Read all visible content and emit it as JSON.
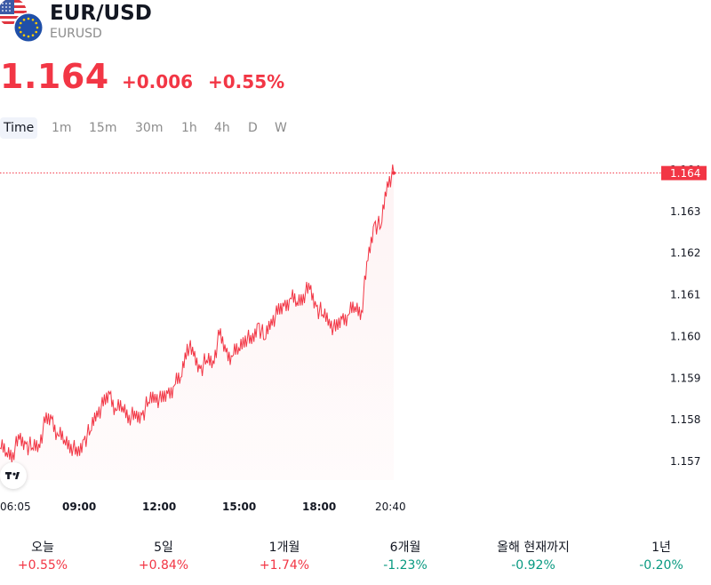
{
  "header": {
    "symbol": "EUR/USD",
    "ticker": "EURUSD",
    "flag_icons": [
      "us-flag-icon",
      "eu-flag-icon"
    ]
  },
  "quote": {
    "price": "1.164",
    "change": "+0.006",
    "change_percent": "+0.55%",
    "color": "#f23645"
  },
  "tabs": [
    {
      "label": "Time",
      "active": true
    },
    {
      "label": "1m"
    },
    {
      "label": "15m"
    },
    {
      "label": "30m"
    },
    {
      "label": "1h"
    },
    {
      "label": "4h"
    },
    {
      "label": "D"
    },
    {
      "label": "W"
    }
  ],
  "chart_data": {
    "type": "line",
    "y_ticks": [
      "1.157",
      "1.158",
      "1.159",
      "1.160",
      "1.161",
      "1.162",
      "1.163",
      "1.164"
    ],
    "x_ticks": [
      "06:05",
      "09:00",
      "12:00",
      "15:00",
      "18:00",
      "20:40"
    ],
    "x_ticks_bold": [
      "09:00",
      "12:00",
      "15:00",
      "18:00"
    ],
    "last_price_label": "1.164",
    "ylim": [
      1.1566,
      1.1643
    ],
    "line_color": "#f23645",
    "series": [
      {
        "x": [
          "06:05",
          "06:15",
          "06:30",
          "06:45",
          "07:00",
          "07:15",
          "07:30",
          "07:45",
          "08:00",
          "08:15",
          "08:30",
          "08:45",
          "09:00",
          "09:15",
          "09:30",
          "09:45",
          "10:00",
          "10:15",
          "10:30",
          "10:45",
          "11:00",
          "11:15",
          "11:30",
          "11:45",
          "12:00",
          "12:15",
          "12:30",
          "12:45",
          "13:00",
          "13:15",
          "13:30",
          "13:45",
          "14:00",
          "14:15",
          "14:30",
          "14:45",
          "15:00",
          "15:15",
          "15:30",
          "15:45",
          "16:00",
          "16:15",
          "16:30",
          "16:45",
          "17:00",
          "17:15",
          "17:30",
          "17:45",
          "18:00",
          "18:15",
          "18:30",
          "18:45",
          "19:00",
          "19:15",
          "19:30",
          "19:45",
          "20:00",
          "20:10",
          "20:20",
          "20:30",
          "20:35",
          "20:40"
        ],
        "values": [
          1.1573,
          1.1572,
          1.1572,
          1.1575,
          1.1574,
          1.1573,
          1.1574,
          1.1579,
          1.158,
          1.1576,
          1.1575,
          1.1574,
          1.1571,
          1.1575,
          1.1577,
          1.1582,
          1.1583,
          1.1586,
          1.1582,
          1.1583,
          1.1581,
          1.158,
          1.1581,
          1.1584,
          1.1586,
          1.1584,
          1.1586,
          1.1588,
          1.159,
          1.1598,
          1.1595,
          1.1592,
          1.1594,
          1.1594,
          1.16,
          1.1596,
          1.1595,
          1.1597,
          1.16,
          1.1598,
          1.1603,
          1.1599,
          1.1604,
          1.1605,
          1.1607,
          1.1609,
          1.1608,
          1.161,
          1.1611,
          1.1607,
          1.1605,
          1.1604,
          1.1601,
          1.1604,
          1.1605,
          1.1607,
          1.1606,
          1.1618,
          1.1627,
          1.1626,
          1.1637,
          1.1639
        ]
      }
    ]
  },
  "performance": [
    {
      "label": "오늘",
      "value": "+0.55%",
      "trend": "up"
    },
    {
      "label": "5일",
      "value": "+0.84%",
      "trend": "up"
    },
    {
      "label": "1개월",
      "value": "+1.74%",
      "trend": "up"
    },
    {
      "label": "6개월",
      "value": "-1.23%",
      "trend": "down"
    },
    {
      "label": "올해 현재까지",
      "value": "-0.92%",
      "trend": "down"
    },
    {
      "label": "1년",
      "value": "-0.20%",
      "trend": "down"
    }
  ]
}
